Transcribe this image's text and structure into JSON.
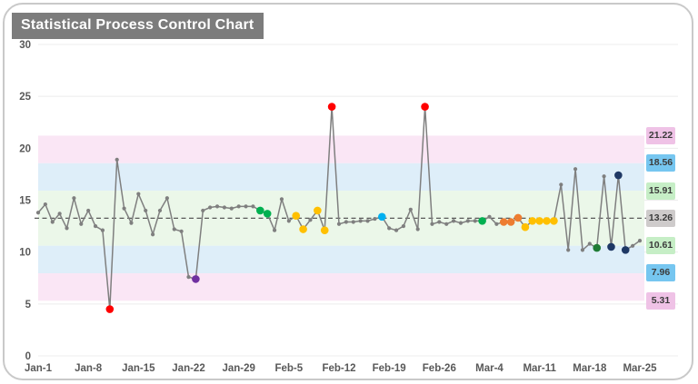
{
  "page": {
    "title": "Statistical Process Control Chart"
  },
  "chart_data": {
    "type": "line",
    "title": "Statistical Process Control Chart",
    "xlabel": "",
    "ylabel": "",
    "ylim": [
      0,
      30
    ],
    "yticks": [
      0,
      5,
      10,
      15,
      20,
      25,
      30
    ],
    "xticks": [
      "Jan-1",
      "Jan-8",
      "Jan-15",
      "Jan-22",
      "Jan-29",
      "Feb-5",
      "Feb-12",
      "Feb-19",
      "Feb-26",
      "Mar-4",
      "Mar-11",
      "Mar-18",
      "Mar-25"
    ],
    "grid": "horizontal",
    "center_line": 13.26,
    "sigma_levels": [
      21.22,
      18.56,
      15.91,
      13.26,
      10.61,
      7.96,
      5.31
    ],
    "x": [
      "Jan-1",
      "Jan-2",
      "Jan-3",
      "Jan-4",
      "Jan-5",
      "Jan-6",
      "Jan-7",
      "Jan-8",
      "Jan-9",
      "Jan-10",
      "Jan-11",
      "Jan-12",
      "Jan-13",
      "Jan-14",
      "Jan-15",
      "Jan-16",
      "Jan-17",
      "Jan-18",
      "Jan-19",
      "Jan-20",
      "Jan-21",
      "Jan-22",
      "Jan-23",
      "Jan-24",
      "Jan-25",
      "Jan-26",
      "Jan-27",
      "Jan-28",
      "Jan-29",
      "Jan-30",
      "Jan-31",
      "Feb-1",
      "Feb-2",
      "Feb-3",
      "Feb-4",
      "Feb-5",
      "Feb-6",
      "Feb-7",
      "Feb-8",
      "Feb-9",
      "Feb-10",
      "Feb-11",
      "Feb-12",
      "Feb-13",
      "Feb-14",
      "Feb-15",
      "Feb-16",
      "Feb-17",
      "Feb-18",
      "Feb-19",
      "Feb-20",
      "Feb-21",
      "Feb-22",
      "Feb-23",
      "Feb-24",
      "Feb-25",
      "Feb-26",
      "Feb-27",
      "Feb-28",
      "Feb-29",
      "Mar-1",
      "Mar-2",
      "Mar-3",
      "Mar-4",
      "Mar-5",
      "Mar-6",
      "Mar-7",
      "Mar-8",
      "Mar-9",
      "Mar-10",
      "Mar-11",
      "Mar-12",
      "Mar-13",
      "Mar-14",
      "Mar-15",
      "Mar-16",
      "Mar-17",
      "Mar-18",
      "Mar-19",
      "Mar-20",
      "Mar-21",
      "Mar-22",
      "Mar-23",
      "Mar-24",
      "Mar-25"
    ],
    "values": [
      13.8,
      14.6,
      12.9,
      13.7,
      12.3,
      15.2,
      12.7,
      14.0,
      12.5,
      12.1,
      4.5,
      18.9,
      14.2,
      12.8,
      15.6,
      14.0,
      11.7,
      14.0,
      15.2,
      12.2,
      12.0,
      7.6,
      7.4,
      14.0,
      14.3,
      14.4,
      14.3,
      14.2,
      14.4,
      14.4,
      14.4,
      14.0,
      13.7,
      12.1,
      15.1,
      13.0,
      13.5,
      12.2,
      13.1,
      14.0,
      12.1,
      24.0,
      12.7,
      12.9,
      12.9,
      13.0,
      13.0,
      13.2,
      13.4,
      12.3,
      12.1,
      12.5,
      14.1,
      12.2,
      24.0,
      12.7,
      12.9,
      12.7,
      13.0,
      12.8,
      13.0,
      13.0,
      13.0,
      13.4,
      12.7,
      12.9,
      12.9,
      13.3,
      12.4,
      13.0,
      13.0,
      13.0,
      13.0,
      16.5,
      10.2,
      18.0,
      10.2,
      10.8,
      10.4,
      17.3,
      10.5,
      17.4,
      10.2,
      10.6,
      11.1
    ],
    "point_colors": {
      "10": "red",
      "22": "purple",
      "31": "green",
      "32": "green",
      "36": "yellow",
      "37": "yellow",
      "39": "yellow",
      "40": "yellow",
      "41": "red",
      "48": "blue",
      "54": "red",
      "62": "green",
      "65": "orange",
      "66": "orange",
      "67": "orange",
      "68": "yellow",
      "69": "yellow",
      "70": "yellow",
      "71": "yellow",
      "72": "yellow",
      "78": "darkgreen",
      "80": "navy",
      "81": "navy",
      "82": "navy"
    },
    "palette": {
      "red": "#FF0000",
      "purple": "#7030A0",
      "green": "#00B050",
      "yellow": "#FFC000",
      "blue": "#00B0F0",
      "orange": "#ED7D31",
      "darkgreen": "#1E7B34",
      "navy": "#1F3864",
      "line": "#7F7F7F",
      "marker": "#7F7F7F",
      "center_line": "#595959",
      "axis_text": "#595959",
      "gridline": "#ECECEC"
    },
    "bands": [
      {
        "from": 18.56,
        "to": 21.22,
        "color": "#FAE6F5"
      },
      {
        "from": 15.91,
        "to": 18.56,
        "color": "#DEEEF9"
      },
      {
        "from": 13.26,
        "to": 15.91,
        "color": "#EBF7E9"
      },
      {
        "from": 10.61,
        "to": 13.26,
        "color": "#EBF7E9"
      },
      {
        "from": 7.96,
        "to": 10.61,
        "color": "#DEEEF9"
      },
      {
        "from": 5.31,
        "to": 7.96,
        "color": "#FAE6F5"
      }
    ],
    "sigma_chips": [
      {
        "label": "21.22",
        "value": 21.22,
        "bg": "#EFC2E6"
      },
      {
        "label": "18.56",
        "value": 18.56,
        "bg": "#76C6F0"
      },
      {
        "label": "15.91",
        "value": 15.91,
        "bg": "#C6EEC6"
      },
      {
        "label": "13.26",
        "value": 13.26,
        "bg": "#CECBCB"
      },
      {
        "label": "10.61",
        "value": 10.61,
        "bg": "#C6EEC6"
      },
      {
        "label": "7.96",
        "value": 7.96,
        "bg": "#76C6F0"
      },
      {
        "label": "5.31",
        "value": 5.31,
        "bg": "#EFC2E6"
      }
    ],
    "legend_position": "right-inline"
  }
}
